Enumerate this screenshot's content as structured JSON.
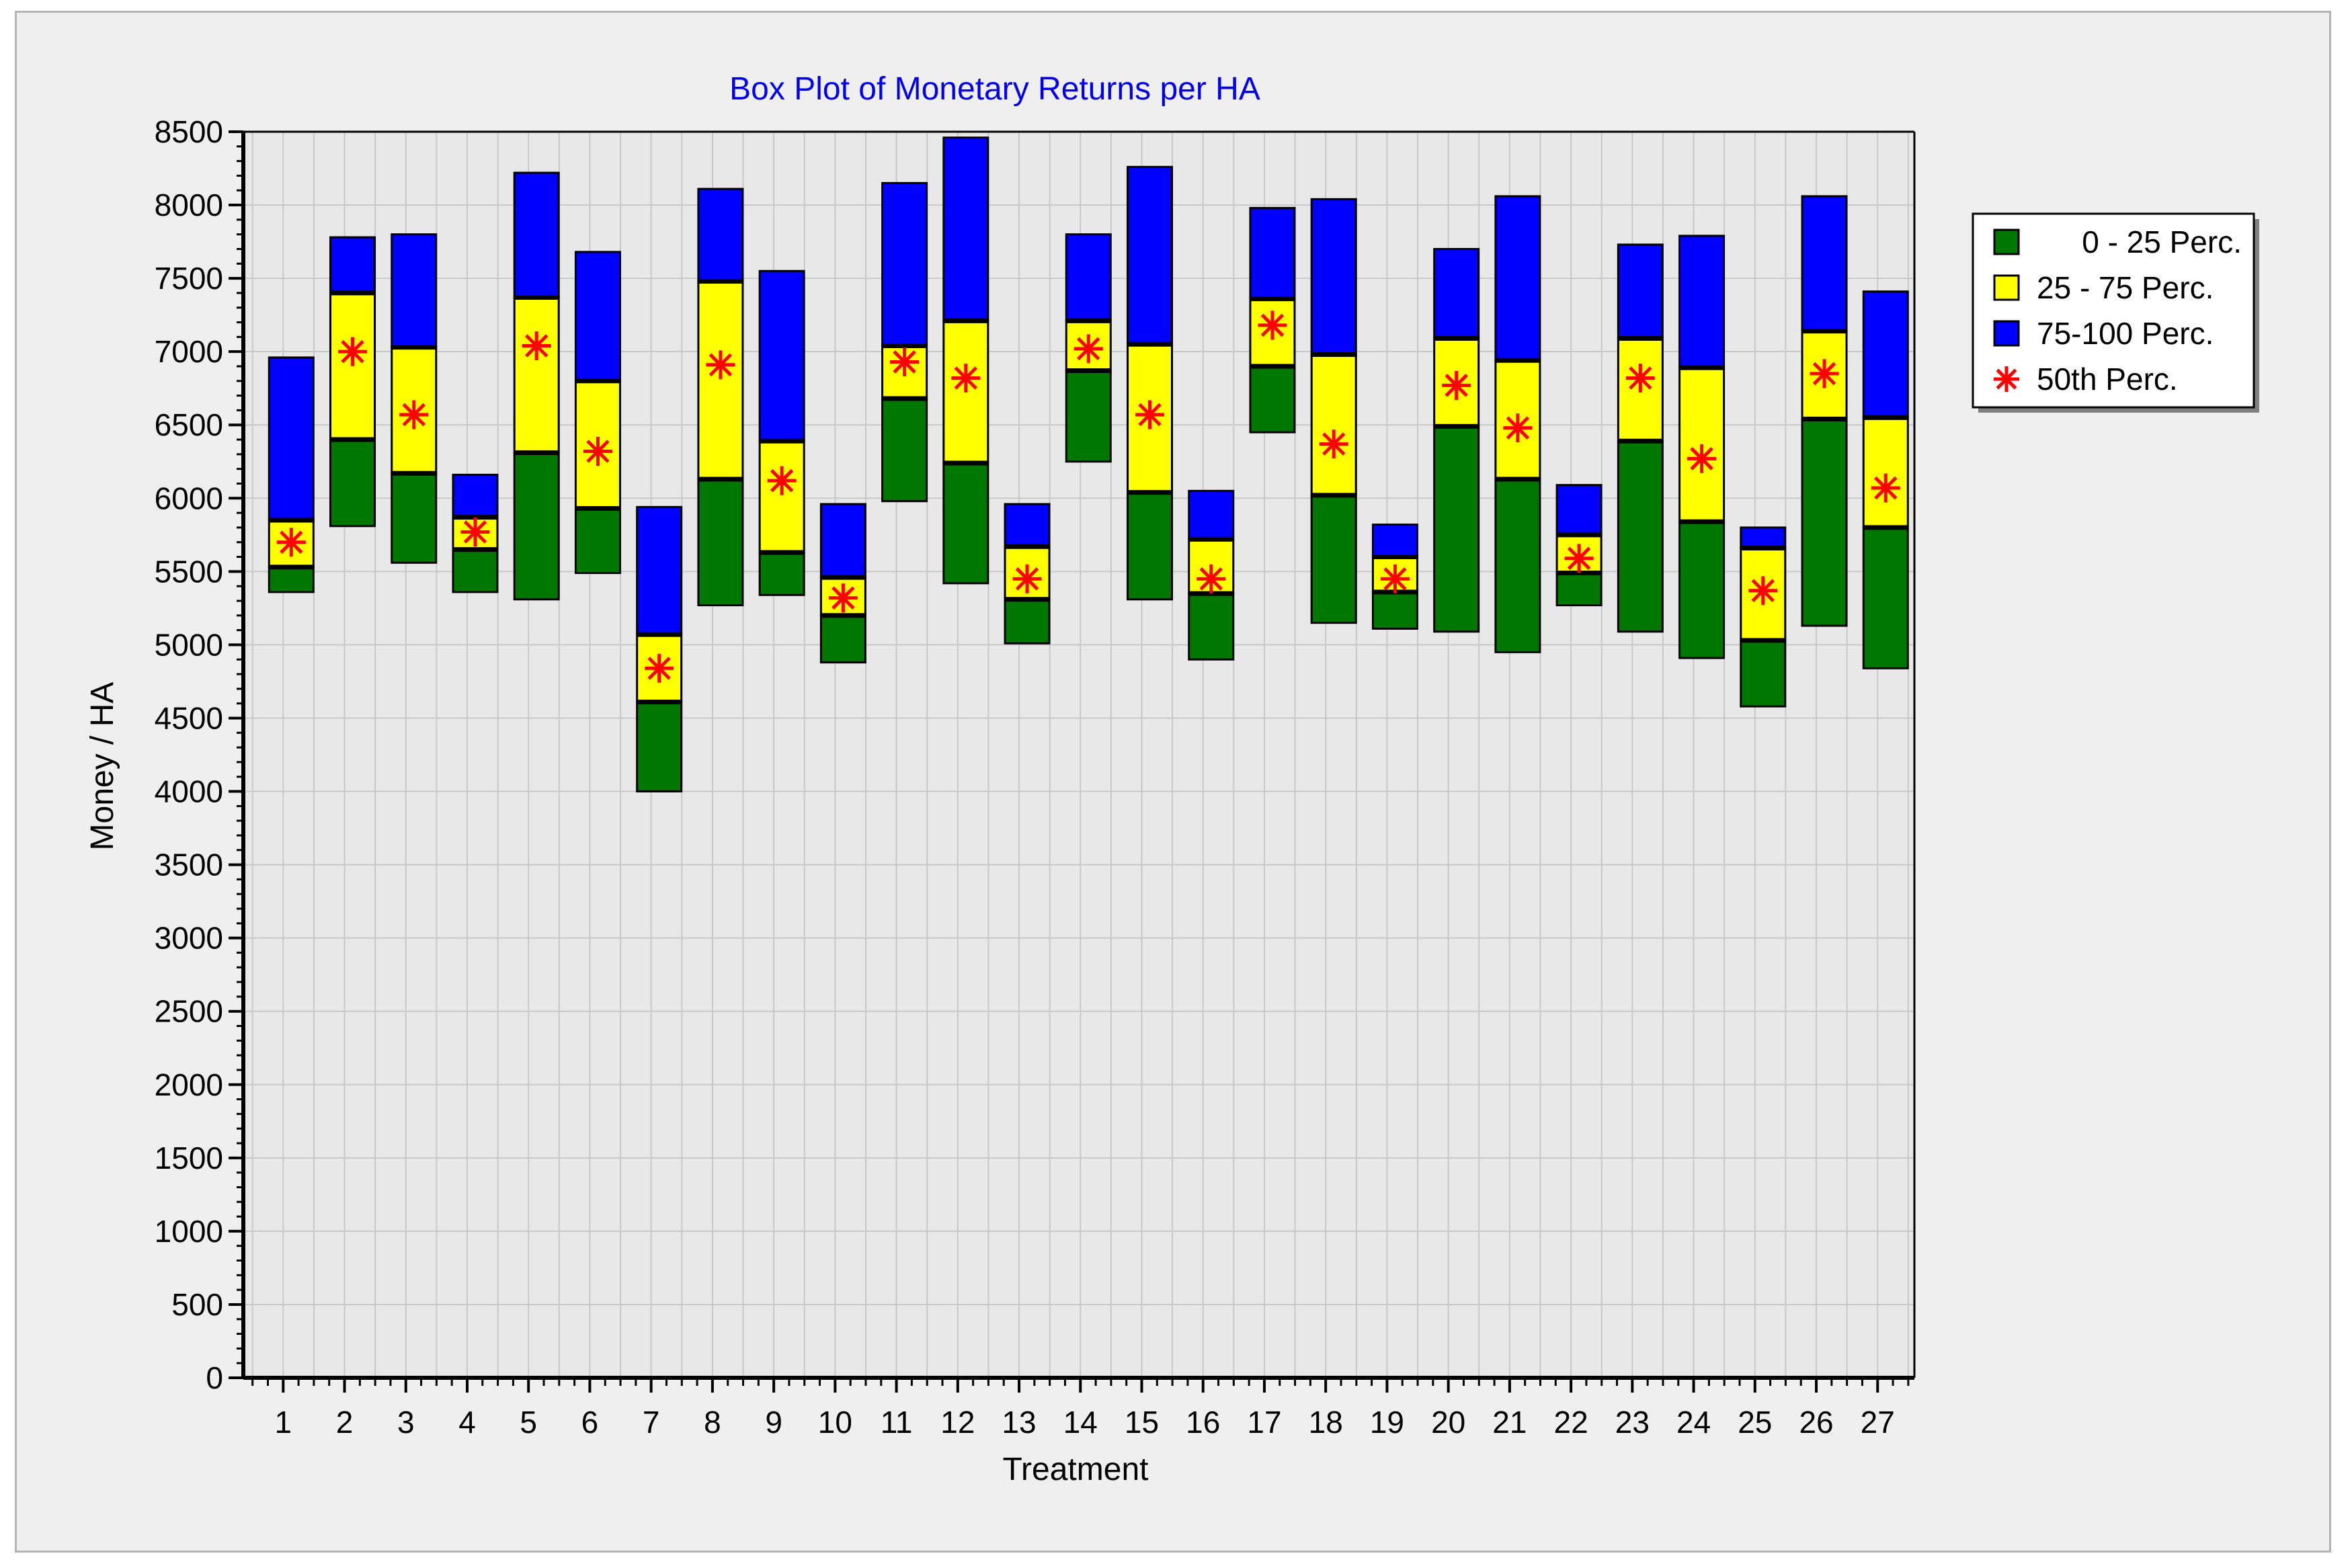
{
  "chart_data": {
    "type": "box",
    "title": "Box Plot of Monetary Returns per HA",
    "xlabel": "Treatment",
    "ylabel": "Money / HA",
    "ylim": [
      0,
      8500
    ],
    "yticks": [
      0,
      500,
      1000,
      1500,
      2000,
      2500,
      3000,
      3500,
      4000,
      4500,
      5000,
      5500,
      6000,
      6500,
      7000,
      7500,
      8000,
      8500
    ],
    "grid": true,
    "legend_position": "right",
    "legend": [
      {
        "label": "0 - 25 Perc.",
        "color": "#007800",
        "marker": "square"
      },
      {
        "label": "25 - 75 Perc.",
        "color": "#ffff00",
        "marker": "square"
      },
      {
        "label": "75-100 Perc.",
        "color": "#0000ff",
        "marker": "square"
      },
      {
        "label": "50th Perc.",
        "color": "#ff0000",
        "marker": "star"
      }
    ],
    "colors": {
      "q1": "#007800",
      "iqr": "#ffff00",
      "q4": "#0000ff",
      "median": "#ff0000",
      "background": "#efefef",
      "plot_bg": "#e8e8e8",
      "grid": "#c8c8c8"
    },
    "categories": [
      "1",
      "2",
      "3",
      "4",
      "5",
      "6",
      "7",
      "8",
      "9",
      "10",
      "11",
      "12",
      "13",
      "14",
      "15",
      "16",
      "17",
      "18",
      "19",
      "20",
      "21",
      "22",
      "23",
      "24",
      "25",
      "26",
      "27"
    ],
    "boxes": [
      {
        "x": "1",
        "min": 5360,
        "q1": 5530,
        "median": 5700,
        "q3": 5850,
        "max": 6960
      },
      {
        "x": "2",
        "min": 5810,
        "q1": 6400,
        "median": 7000,
        "q3": 7400,
        "max": 7780
      },
      {
        "x": "3",
        "min": 5560,
        "q1": 6170,
        "median": 6570,
        "q3": 7030,
        "max": 7800
      },
      {
        "x": "4",
        "min": 5360,
        "q1": 5650,
        "median": 5770,
        "q3": 5870,
        "max": 6160
      },
      {
        "x": "5",
        "min": 5310,
        "q1": 6310,
        "median": 7040,
        "q3": 7370,
        "max": 8220
      },
      {
        "x": "6",
        "min": 5490,
        "q1": 5930,
        "median": 6320,
        "q3": 6800,
        "max": 7680
      },
      {
        "x": "7",
        "min": 4000,
        "q1": 4610,
        "median": 4840,
        "q3": 5070,
        "max": 5940
      },
      {
        "x": "8",
        "min": 5270,
        "q1": 6130,
        "median": 6910,
        "q3": 7480,
        "max": 8110
      },
      {
        "x": "9",
        "min": 5340,
        "q1": 5630,
        "median": 6120,
        "q3": 6390,
        "max": 7550
      },
      {
        "x": "10",
        "min": 4880,
        "q1": 5200,
        "median": 5320,
        "q3": 5460,
        "max": 5960
      },
      {
        "x": "11",
        "min": 5980,
        "q1": 6680,
        "median": 6930,
        "q3": 7040,
        "max": 8150
      },
      {
        "x": "12",
        "min": 5420,
        "q1": 6240,
        "median": 6820,
        "q3": 7210,
        "max": 8460
      },
      {
        "x": "13",
        "min": 5010,
        "q1": 5310,
        "median": 5450,
        "q3": 5670,
        "max": 5960
      },
      {
        "x": "14",
        "min": 6250,
        "q1": 6870,
        "median": 7020,
        "q3": 7210,
        "max": 7800
      },
      {
        "x": "15",
        "min": 5310,
        "q1": 6040,
        "median": 6570,
        "q3": 7050,
        "max": 8260
      },
      {
        "x": "16",
        "min": 4900,
        "q1": 5350,
        "median": 5450,
        "q3": 5720,
        "max": 6050
      },
      {
        "x": "17",
        "min": 6450,
        "q1": 6900,
        "median": 7180,
        "q3": 7360,
        "max": 7980
      },
      {
        "x": "18",
        "min": 5150,
        "q1": 6020,
        "median": 6370,
        "q3": 6980,
        "max": 8040
      },
      {
        "x": "19",
        "min": 5110,
        "q1": 5360,
        "median": 5450,
        "q3": 5600,
        "max": 5820
      },
      {
        "x": "20",
        "min": 5090,
        "q1": 6490,
        "median": 6770,
        "q3": 7090,
        "max": 7700
      },
      {
        "x": "21",
        "min": 4950,
        "q1": 6130,
        "median": 6480,
        "q3": 6940,
        "max": 8060
      },
      {
        "x": "22",
        "min": 5270,
        "q1": 5490,
        "median": 5590,
        "q3": 5750,
        "max": 6090
      },
      {
        "x": "23",
        "min": 5090,
        "q1": 6390,
        "median": 6820,
        "q3": 7090,
        "max": 7730
      },
      {
        "x": "24",
        "min": 4910,
        "q1": 5840,
        "median": 6270,
        "q3": 6890,
        "max": 7790
      },
      {
        "x": "25",
        "min": 4580,
        "q1": 5030,
        "median": 5370,
        "q3": 5660,
        "max": 5800
      },
      {
        "x": "26",
        "min": 5130,
        "q1": 6540,
        "median": 6850,
        "q3": 7140,
        "max": 8060
      },
      {
        "x": "27",
        "min": 4840,
        "q1": 5800,
        "median": 6070,
        "q3": 6550,
        "max": 7410
      }
    ]
  }
}
